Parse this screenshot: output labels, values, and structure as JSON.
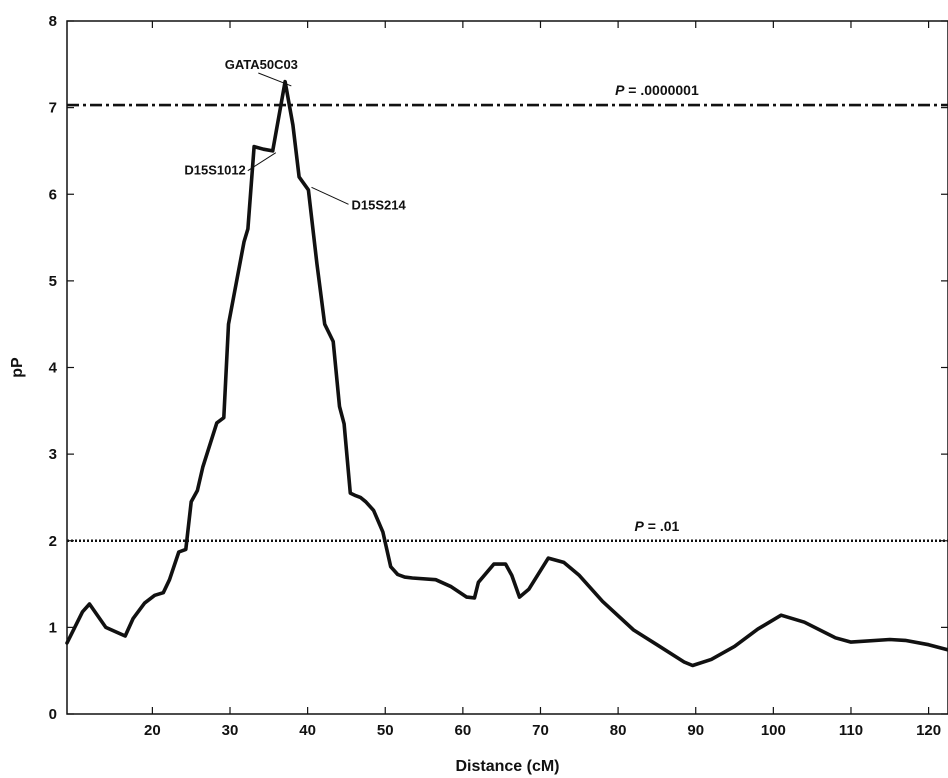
{
  "chart_data": {
    "type": "line",
    "xlabel": "Distance (cM)",
    "ylabel": "pP",
    "xlim": [
      9,
      122.5
    ],
    "ylim": [
      0,
      8
    ],
    "xticks": [
      20,
      30,
      40,
      50,
      60,
      70,
      80,
      90,
      100,
      110,
      120
    ],
    "yticks": [
      0,
      1,
      2,
      3,
      4,
      5,
      6,
      7,
      8
    ],
    "grid": false,
    "series": [
      {
        "x": [
          9,
          11,
          11.9,
          14,
          16.5,
          17.5,
          19,
          20.3,
          21.4,
          22.2,
          23.4,
          24.3,
          25,
          25.8,
          26.5,
          28.3,
          29.2,
          29.8,
          31.8,
          32.3,
          33.1,
          34.3,
          35.5,
          36.3,
          37.1,
          38.1,
          38.9,
          40.1,
          41.2,
          42.2,
          43.3,
          44.1,
          44.7,
          45.5,
          46.2,
          46.8,
          47.5,
          48.5,
          49.7,
          50.7,
          51.6,
          52.5,
          53.5,
          56.5,
          58.5,
          60.5,
          61.5,
          62,
          64,
          65.5,
          66.3,
          67.3,
          68.5,
          71,
          73,
          75,
          78,
          82,
          85,
          88.5,
          89.6,
          92,
          95,
          98,
          101,
          104,
          108,
          110,
          115,
          117,
          120,
          122.5
        ],
        "y": [
          0.82,
          1.18,
          1.27,
          1.0,
          0.9,
          1.1,
          1.28,
          1.37,
          1.4,
          1.55,
          1.87,
          1.9,
          2.45,
          2.58,
          2.85,
          3.36,
          3.42,
          4.5,
          5.45,
          5.6,
          6.55,
          6.52,
          6.5,
          6.9,
          7.3,
          6.8,
          6.2,
          6.05,
          5.2,
          4.5,
          4.3,
          3.55,
          3.35,
          2.55,
          2.52,
          2.5,
          2.45,
          2.35,
          2.1,
          1.7,
          1.61,
          1.58,
          1.57,
          1.55,
          1.47,
          1.35,
          1.34,
          1.52,
          1.73,
          1.73,
          1.6,
          1.35,
          1.44,
          1.8,
          1.75,
          1.6,
          1.3,
          0.97,
          0.8,
          0.6,
          0.56,
          0.63,
          0.78,
          0.98,
          1.14,
          1.06,
          0.88,
          0.83,
          0.86,
          0.85,
          0.8,
          0.74
        ]
      }
    ],
    "reference_lines": [
      {
        "y": 7.03,
        "style": "dash-dot",
        "label_prefix": "P",
        "label_value": " = .0000001",
        "label_x": 85
      },
      {
        "y": 2.0,
        "style": "dotted",
        "label_prefix": "P",
        "label_value": " = .01",
        "label_x": 85
      }
    ],
    "annotations": [
      {
        "text": "GATA50C03",
        "point": [
          37.9,
          7.25
        ],
        "anchor": "top"
      },
      {
        "text": "D15S1012",
        "point": [
          35.9,
          6.48
        ],
        "anchor": "left"
      },
      {
        "text": "D15S214",
        "point": [
          40.5,
          6.08
        ],
        "anchor": "right"
      }
    ]
  }
}
